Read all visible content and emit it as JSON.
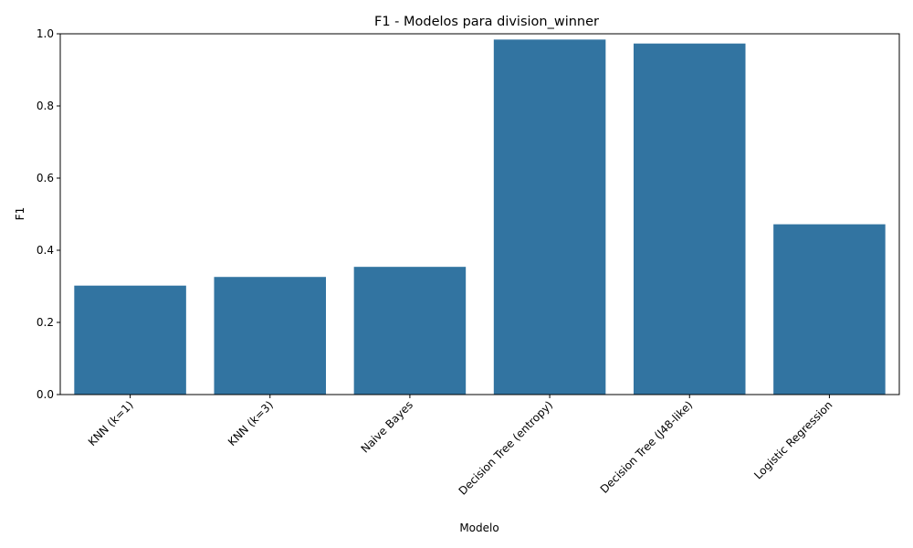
{
  "chart_data": {
    "type": "bar",
    "title": "F1 - Modelos para division_winner",
    "xlabel": "Modelo",
    "ylabel": "F1",
    "categories": [
      "KNN (k=1)",
      "KNN (k=3)",
      "Naive Bayes",
      "Decision Tree (entropy)",
      "Decision Tree (J48-like)",
      "Logistic Regression"
    ],
    "values": [
      0.302,
      0.326,
      0.354,
      0.984,
      0.973,
      0.472
    ],
    "ylim": [
      0,
      1.0
    ],
    "yticks": [
      "0.0",
      "0.2",
      "0.4",
      "0.6",
      "0.8",
      "1.0"
    ],
    "bar_color": "#3274a1",
    "grid": false,
    "legend": "none"
  }
}
